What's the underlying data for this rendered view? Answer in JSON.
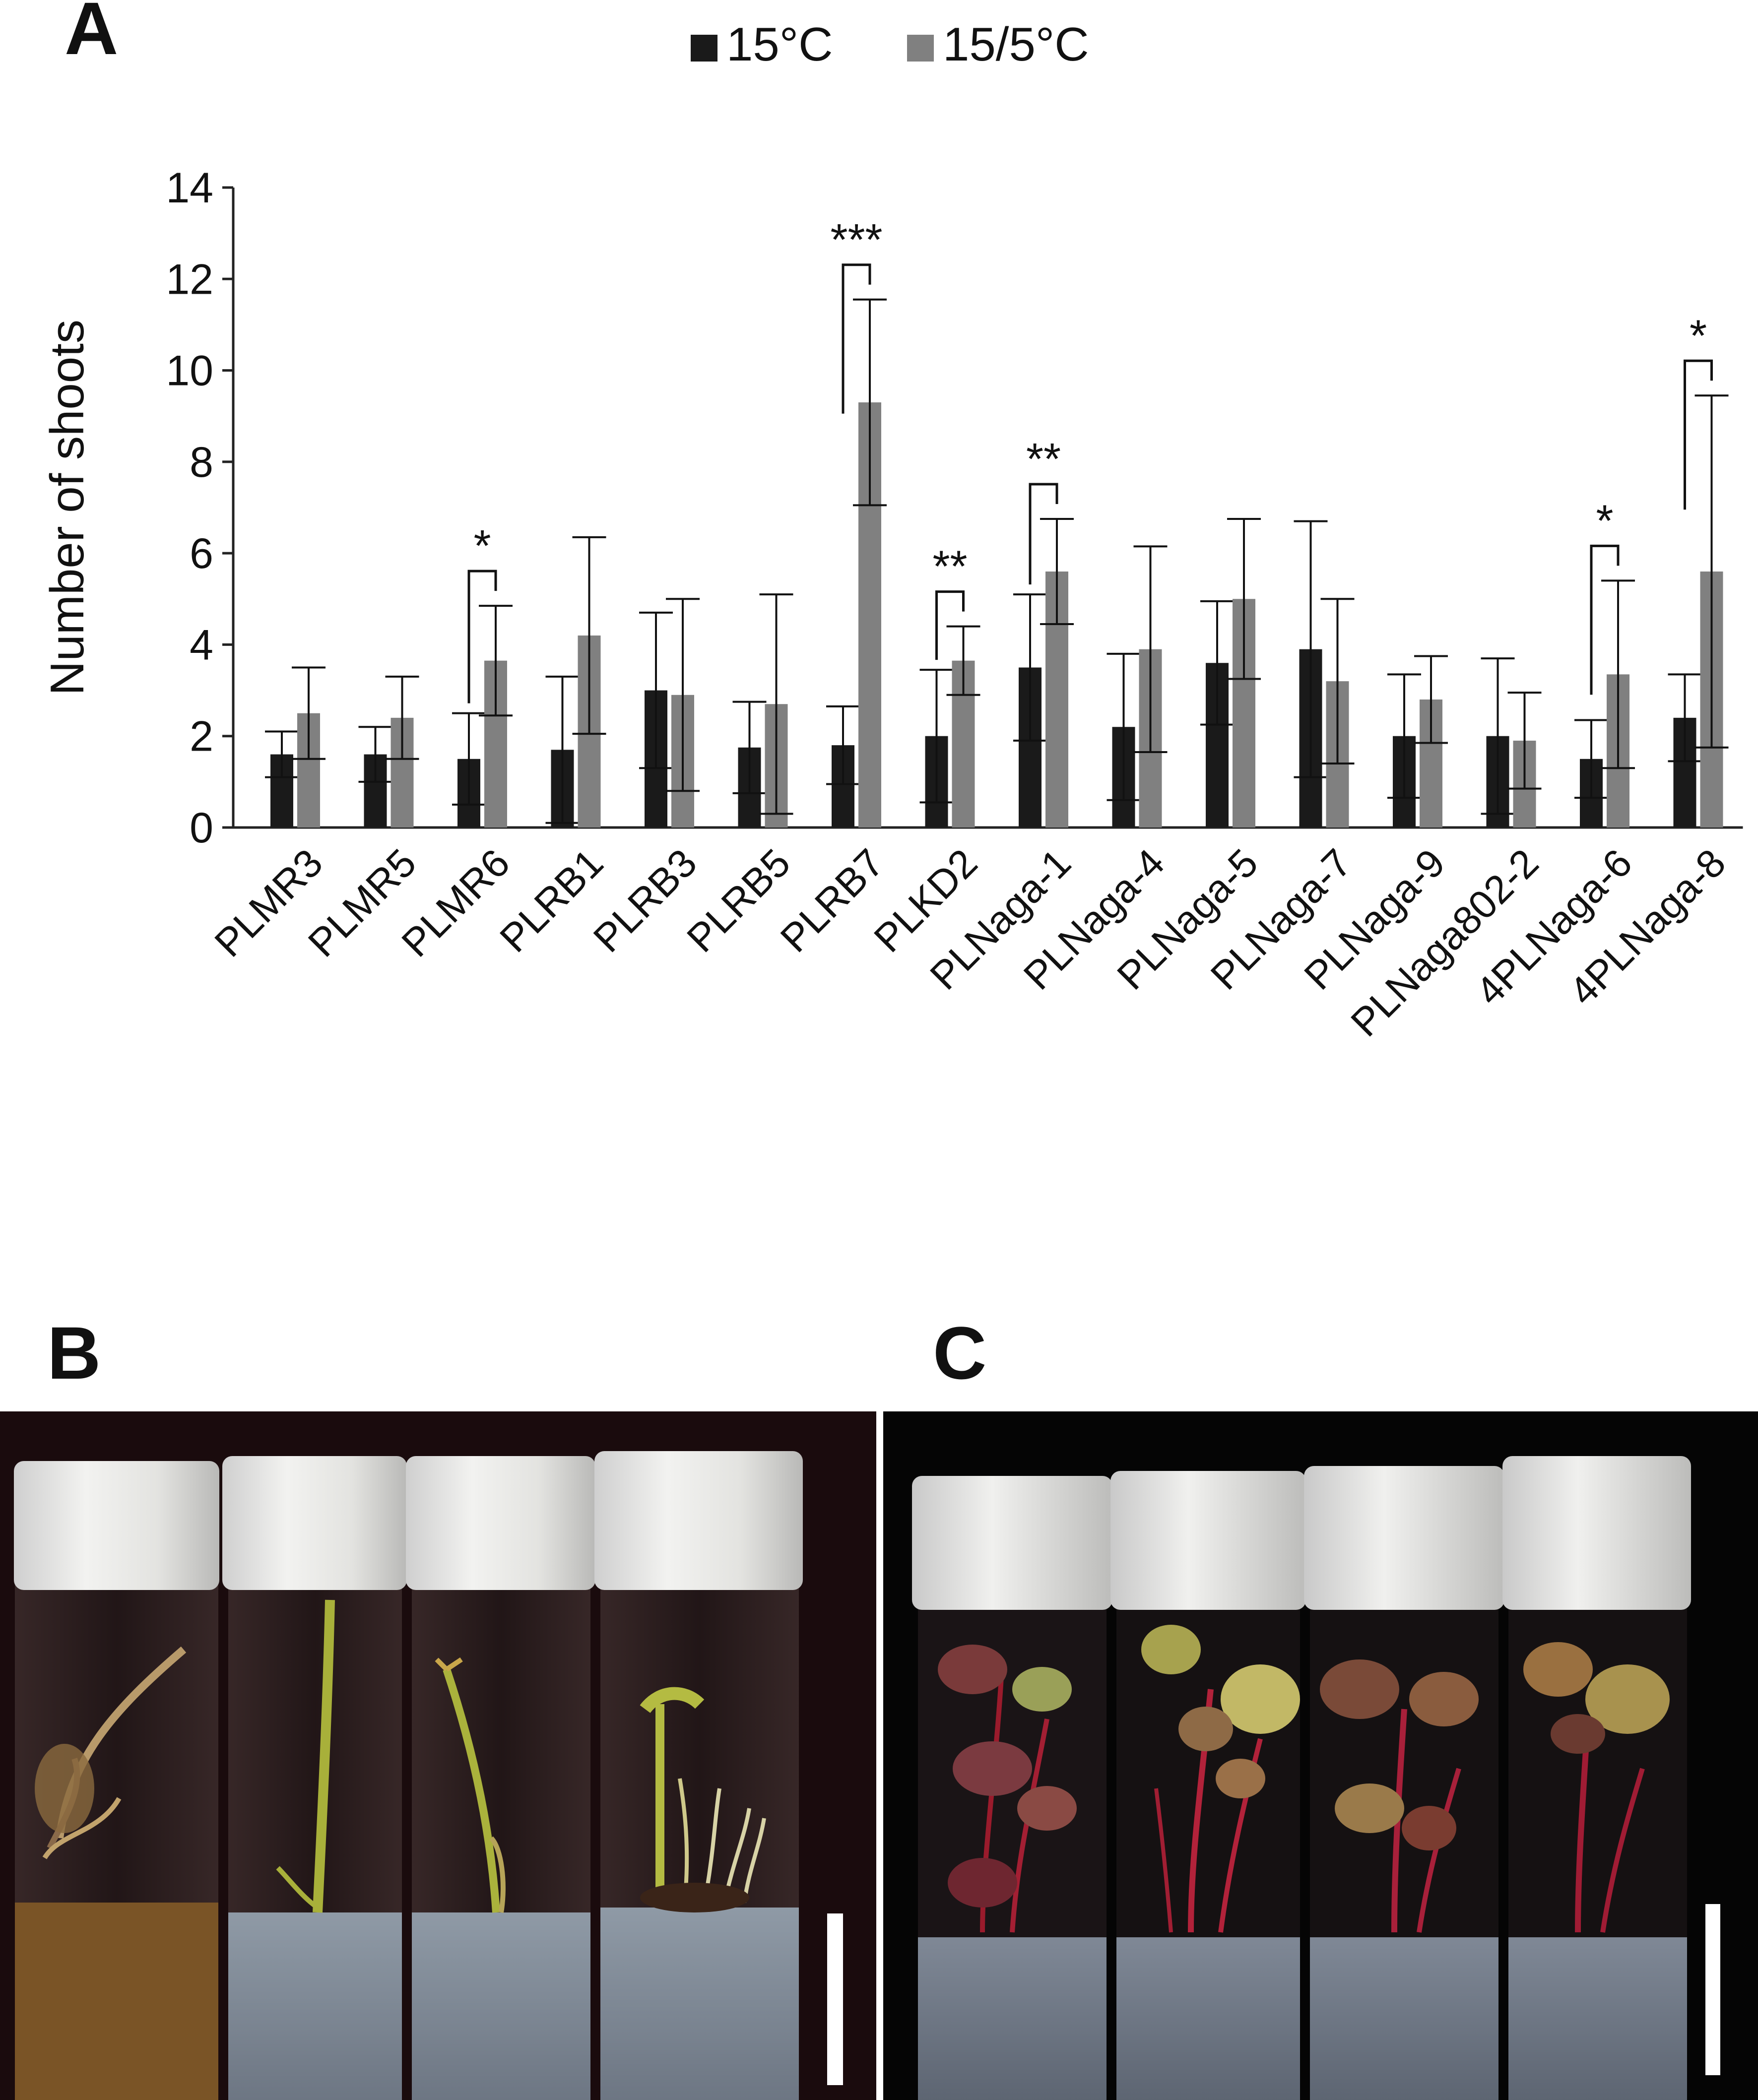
{
  "panels": {
    "a": "A",
    "b": "B",
    "c": "C"
  },
  "chart_data": {
    "type": "bar",
    "title": "",
    "xlabel": "",
    "ylabel": "Number of shoots",
    "ylim": [
      0,
      14
    ],
    "yticks": [
      0,
      2,
      4,
      6,
      8,
      10,
      12,
      14
    ],
    "categories": [
      "PLMR3",
      "PLMR5",
      "PLMR6",
      "PLRB1",
      "PLRB3",
      "PLRB5",
      "PLRB7",
      "PLKD2",
      "PLNaga-1",
      "PLNaga-4",
      "PLNaga-5",
      "PLNaga-7",
      "PLNaga-9",
      "PLNaga802-2",
      "4PLNaga-6",
      "4PLNaga-8"
    ],
    "legend_position": "top-center",
    "series": [
      {
        "name": "15°C",
        "color": "#1a1a1a",
        "values": [
          1.6,
          1.6,
          1.5,
          1.7,
          3.0,
          1.75,
          1.8,
          2.0,
          3.5,
          2.2,
          3.6,
          3.9,
          2.0,
          2.0,
          1.5,
          2.4
        ],
        "errors": [
          0.5,
          0.6,
          1.0,
          1.6,
          1.7,
          1.0,
          0.85,
          1.45,
          1.6,
          1.6,
          1.35,
          2.8,
          1.35,
          1.7,
          0.85,
          0.95
        ]
      },
      {
        "name": "15/5°C",
        "color": "#808080",
        "values": [
          2.5,
          2.4,
          3.65,
          4.2,
          2.9,
          2.7,
          9.3,
          3.65,
          5.6,
          3.9,
          5.0,
          3.2,
          2.8,
          1.9,
          3.35,
          5.6
        ],
        "errors": [
          1.0,
          0.9,
          1.2,
          2.15,
          2.1,
          2.4,
          2.25,
          0.75,
          1.15,
          2.25,
          1.75,
          1.8,
          0.95,
          1.05,
          2.05,
          3.85
        ]
      }
    ],
    "significance": [
      {
        "category": "PLMR6",
        "label": "*"
      },
      {
        "category": "PLRB7",
        "label": "***"
      },
      {
        "category": "PLKD2",
        "label": "**"
      },
      {
        "category": "PLNaga-1",
        "label": "**"
      },
      {
        "category": "4PLNaga-6",
        "label": "*"
      },
      {
        "category": "4PLNaga-8",
        "label": "*"
      }
    ]
  }
}
